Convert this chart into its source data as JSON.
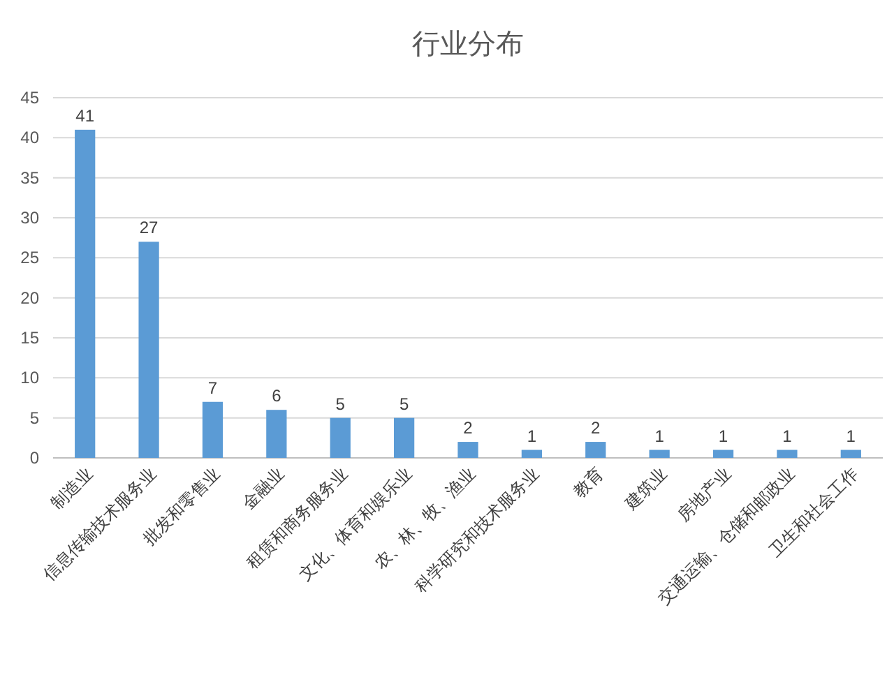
{
  "chart_data": {
    "type": "bar",
    "title": "行业分布",
    "categories": [
      "制造业",
      "信息传输技术服务业",
      "批发和零售业",
      "金融业",
      "租赁和商务服务业",
      "文化、体育和娱乐业",
      "农、林、牧、渔业",
      "科学研究和技术服务业",
      "教育",
      "建筑业",
      "房地产业",
      "交通运输、仓储和邮政业",
      "卫生和社会工作"
    ],
    "values": [
      41,
      27,
      7,
      6,
      5,
      5,
      2,
      1,
      2,
      1,
      1,
      1,
      1
    ],
    "color": "#5b9bd5",
    "ylim": [
      0,
      45
    ],
    "yticks": [
      0,
      5,
      10,
      15,
      20,
      25,
      30,
      35,
      40,
      45
    ],
    "grid": "y",
    "data_labels": true
  }
}
